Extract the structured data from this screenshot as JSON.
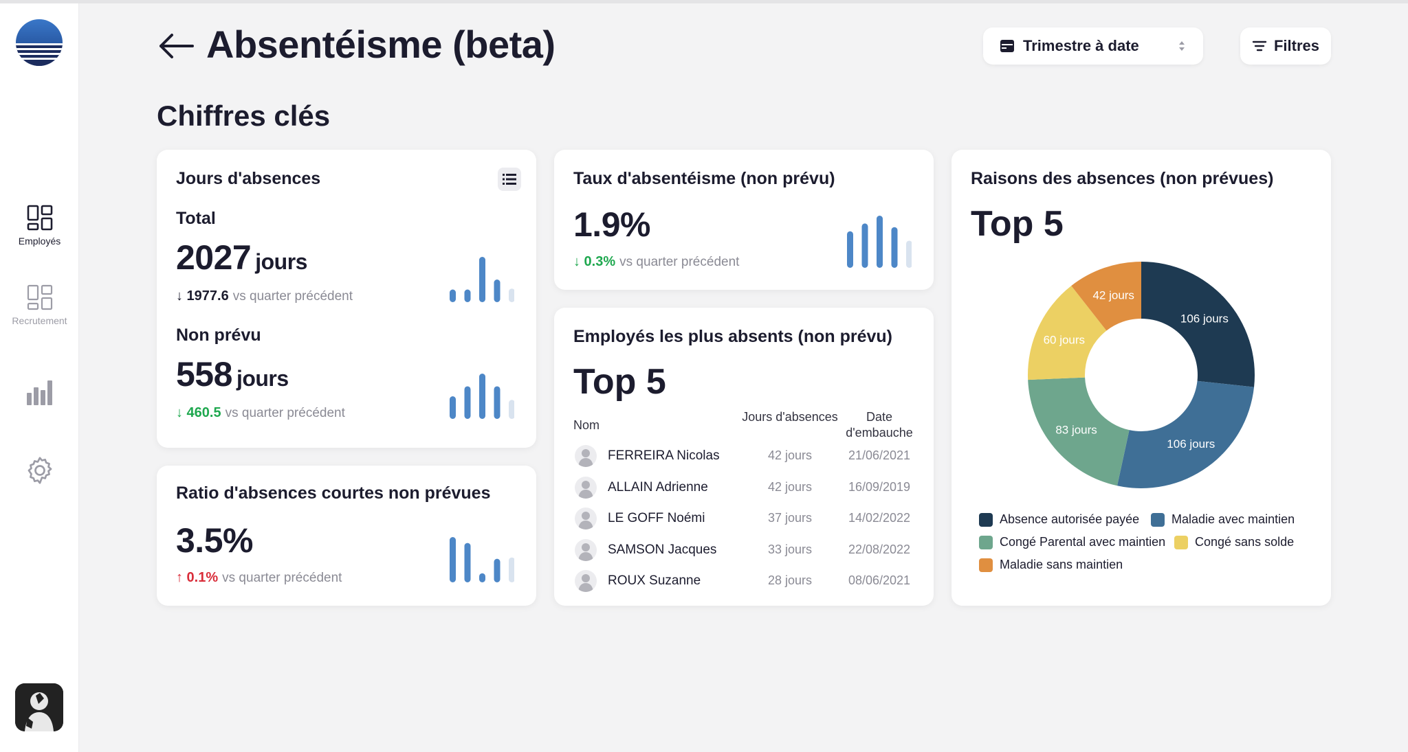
{
  "sidebar": {
    "items": [
      {
        "label": "Employés",
        "icon": "dashboard-icon",
        "active": true
      },
      {
        "label": "Recrutement",
        "icon": "dashboard-icon",
        "active": false
      },
      {
        "label": "",
        "icon": "bar-chart-icon",
        "active": false
      },
      {
        "label": "",
        "icon": "gear-icon",
        "active": false
      }
    ]
  },
  "header": {
    "title": "Absentéisme (beta)",
    "period": "Trimestre à date",
    "filters_label": "Filtres"
  },
  "section_title": "Chiffres clés",
  "absence_days": {
    "title": "Jours d'absences",
    "total": {
      "label": "Total",
      "value": "2027",
      "unit": "jours",
      "delta": "↓ 1977.6",
      "comparison": "vs quarter précédent"
    },
    "unplanned": {
      "label": "Non prévu",
      "value": "558",
      "unit": "jours",
      "delta": "↓ 460.5",
      "comparison": "vs quarter précédent"
    }
  },
  "short_ratio": {
    "title": "Ratio d'absences courtes non prévues",
    "value": "3.5%",
    "delta": "↑ 0.1%",
    "comparison": "vs quarter précédent"
  },
  "absenteeism_rate": {
    "title": "Taux d'absentéisme (non prévu)",
    "value": "1.9%",
    "delta": "↓ 0.3%",
    "comparison": "vs quarter précédent"
  },
  "top_employees": {
    "title": "Employés les plus absents (non prévu)",
    "subtitle": "Top 5",
    "columns": {
      "name": "Nom",
      "days": "Jours d'absences",
      "hire_date": "Date d'embauche"
    },
    "rows": [
      {
        "name": "FERREIRA Nicolas",
        "days": "42 jours",
        "hire_date": "21/06/2021"
      },
      {
        "name": "ALLAIN Adrienne",
        "days": "42 jours",
        "hire_date": "16/09/2019"
      },
      {
        "name": "LE GOFF Noémi",
        "days": "37 jours",
        "hire_date": "14/02/2022"
      },
      {
        "name": "SAMSON Jacques",
        "days": "33 jours",
        "hire_date": "22/08/2022"
      },
      {
        "name": "ROUX Suzanne",
        "days": "28 jours",
        "hire_date": "08/06/2021"
      }
    ]
  },
  "reasons": {
    "title": "Raisons des absences (non prévues)",
    "subtitle": "Top 5"
  },
  "chart_data": {
    "type": "pie",
    "categories": [
      "Absence autorisée payée",
      "Maladie avec maintien",
      "Congé Parental avec maintien",
      "Congé sans solde",
      "Maladie sans maintien"
    ],
    "values": [
      106,
      106,
      83,
      60,
      42
    ],
    "data_labels": [
      "106 jours",
      "106 jours",
      "83 jours",
      "60 jours",
      "42 jours"
    ],
    "colors": [
      "#1e3a52",
      "#3f6f96",
      "#6ea68d",
      "#ecd063",
      "#e08f40"
    ],
    "donut": true,
    "legend": "bottom"
  },
  "sparklines": {
    "color_main": "#4d87c7",
    "color_faded": "#d9e3ef",
    "total": [
      0.28,
      0.28,
      1.0,
      0.5,
      0.3
    ],
    "unplanned": [
      0.5,
      0.72,
      1.0,
      0.72,
      0.42
    ],
    "short_ratio": [
      1.0,
      0.87,
      0.2,
      0.52,
      0.55
    ],
    "rate": [
      0.7,
      0.85,
      1.0,
      0.78,
      0.52
    ]
  }
}
